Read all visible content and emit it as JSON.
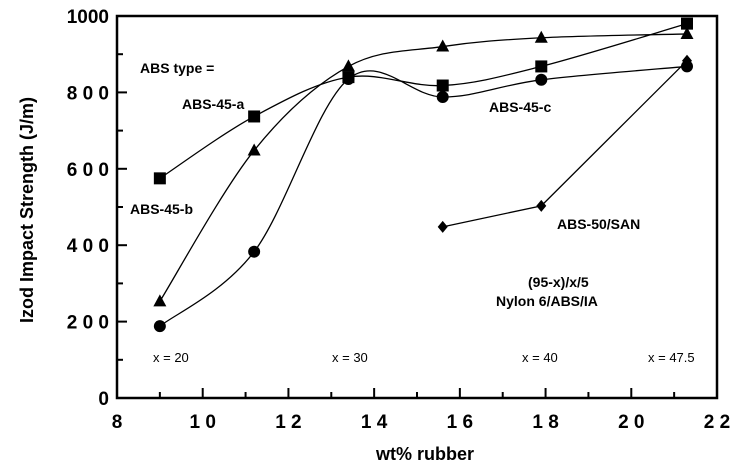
{
  "chart_data": {
    "type": "scatter",
    "title": "",
    "xlabel": "wt% rubber",
    "ylabel": "Izod Impact Strength (J/m)",
    "xlim": [
      8,
      22
    ],
    "ylim": [
      0,
      1000
    ],
    "xticks": [
      8,
      10,
      12,
      14,
      16,
      18,
      20,
      22
    ],
    "yticks": [
      0,
      200,
      400,
      600,
      800,
      1000
    ],
    "xtick_labels": [
      "8",
      "1 0",
      "1 2",
      "1 4",
      "1 6",
      "1 8",
      "2 0",
      "2 2"
    ],
    "ytick_labels": [
      "0",
      "2 0 0",
      "4 0 0",
      "6 0 0",
      "8 0 0",
      "1000"
    ],
    "grid": false,
    "series": [
      {
        "name": "ABS-45-a",
        "marker": "square",
        "x": [
          9.0,
          11.2,
          13.4,
          15.6,
          17.9,
          21.3
        ],
        "y": [
          575,
          737,
          840,
          818,
          868,
          980
        ]
      },
      {
        "name": "ABS-45-b",
        "marker": "triangle",
        "x": [
          9.0,
          11.2,
          13.4,
          15.6,
          17.9,
          21.3
        ],
        "y": [
          253,
          648,
          868,
          920,
          943,
          953
        ]
      },
      {
        "name": "ABS-45-c",
        "marker": "circle",
        "x": [
          9.0,
          11.2,
          13.4,
          15.6,
          17.9,
          21.3
        ],
        "y": [
          188,
          383,
          835,
          788,
          833,
          868
        ]
      },
      {
        "name": "ABS-50/SAN",
        "marker": "diamond",
        "x": [
          15.6,
          17.9,
          21.3
        ],
        "y": [
          448,
          503,
          883
        ]
      }
    ],
    "annotations": {
      "legend_header": "ABS type =",
      "formula_line1": "(95-x)/x/5",
      "formula_line2": "Nylon  6/ABS/IA",
      "x_values": [
        "x = 20",
        "x = 30",
        "x = 40",
        "x = 47.5"
      ]
    }
  }
}
